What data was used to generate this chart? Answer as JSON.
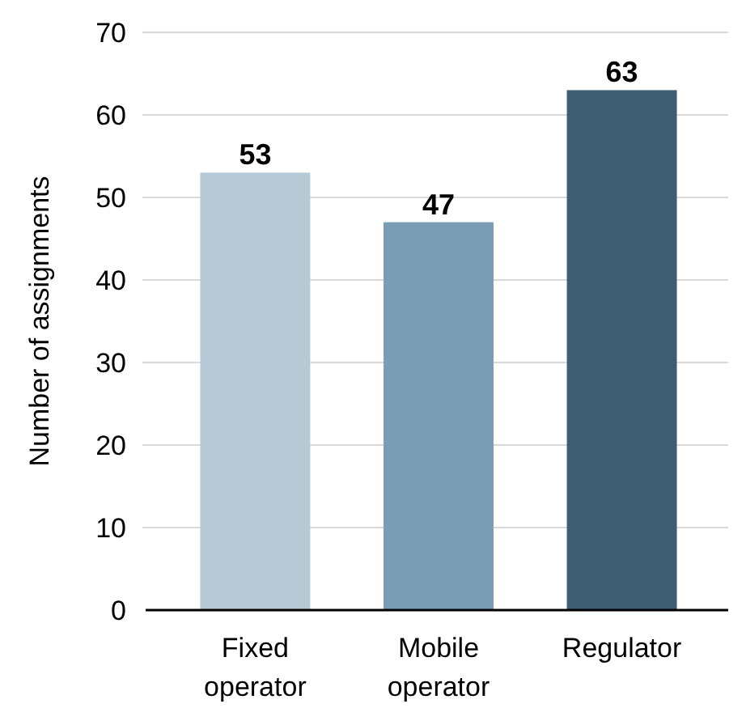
{
  "chart_data": {
    "type": "bar",
    "ylabel": "Number of assignments",
    "categories": [
      "Fixed operator",
      "Mobile operator",
      "Regulator"
    ],
    "values": [
      53,
      47,
      63
    ],
    "colors": [
      "#b8c9d6",
      "#7a9db5",
      "#3f5d72"
    ],
    "ylim": [
      0,
      70
    ],
    "yticks": [
      0,
      10,
      20,
      30,
      40,
      50,
      60,
      70
    ],
    "grid": "y",
    "data_labels": true
  }
}
